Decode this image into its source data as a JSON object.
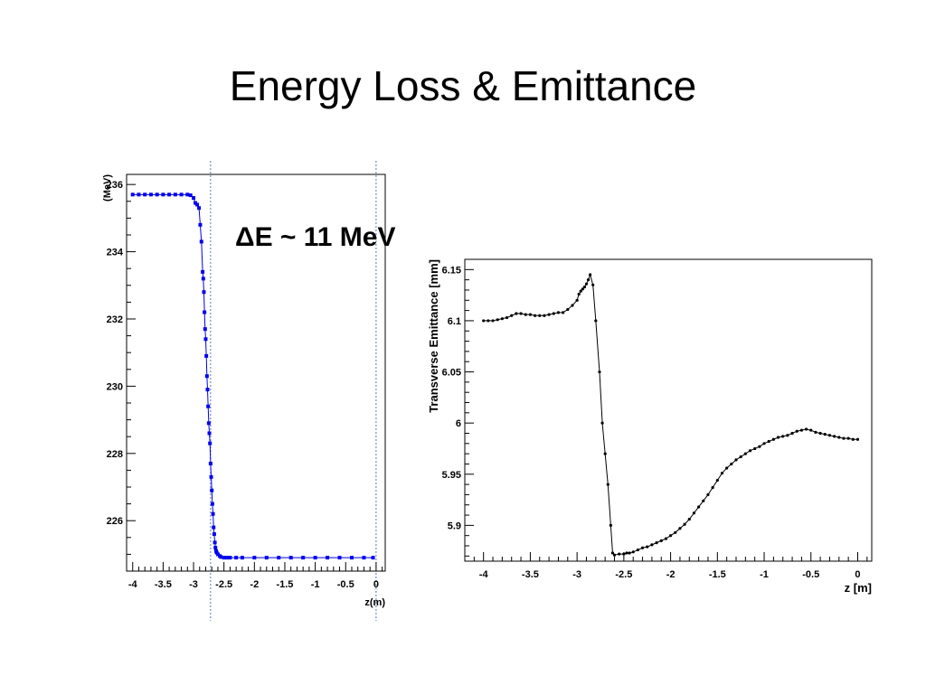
{
  "slide": {
    "title": "Energy Loss & Emittance",
    "annotation": "ΔE ~ 11 MeV"
  },
  "chart_data": [
    {
      "type": "line",
      "title": "",
      "xlabel": "z(m)",
      "ylabel": "(MeV)",
      "xlim": [
        -4.1,
        0.15
      ],
      "ylim": [
        224.5,
        236.3
      ],
      "x_ticks": [
        "-4",
        "-3.5",
        "-3",
        "-2.5",
        "-2",
        "-1.5",
        "-1",
        "-0.5",
        "0"
      ],
      "y_ticks": [
        "226",
        "228",
        "230",
        "232",
        "234",
        "236"
      ],
      "grid": false,
      "colors": {
        "line": "#0000ee",
        "marker": "#0000ee",
        "guide": "#5577cc"
      },
      "vertical_guides": [
        -2.72,
        0.0
      ],
      "series": [
        {
          "x": [
            -4.0,
            -3.9,
            -3.8,
            -3.7,
            -3.6,
            -3.5,
            -3.4,
            -3.3,
            -3.2,
            -3.1,
            -3.05,
            -3.0,
            -2.97,
            -2.94,
            -2.91,
            -2.89,
            -2.87,
            -2.85,
            -2.84,
            -2.83,
            -2.82,
            -2.81,
            -2.8,
            -2.79,
            -2.78,
            -2.77,
            -2.76,
            -2.75,
            -2.74,
            -2.73,
            -2.72,
            -2.71,
            -2.7,
            -2.69,
            -2.68,
            -2.67,
            -2.66,
            -2.65,
            -2.64,
            -2.63,
            -2.62,
            -2.6,
            -2.57,
            -2.55,
            -2.5,
            -2.45,
            -2.4,
            -2.3,
            -2.2,
            -2.0,
            -1.8,
            -1.6,
            -1.4,
            -1.2,
            -1.0,
            -0.8,
            -0.6,
            -0.4,
            -0.2,
            -0.05
          ],
          "y": [
            235.7,
            235.7,
            235.7,
            235.7,
            235.7,
            235.7,
            235.7,
            235.7,
            235.7,
            235.7,
            235.68,
            235.6,
            235.45,
            235.4,
            235.3,
            234.8,
            234.3,
            233.4,
            233.2,
            232.8,
            232.2,
            231.7,
            231.4,
            230.9,
            230.3,
            229.9,
            229.4,
            228.9,
            228.6,
            228.3,
            227.7,
            227.3,
            226.9,
            226.5,
            226.2,
            225.8,
            225.6,
            225.35,
            225.2,
            225.1,
            225.05,
            225.0,
            224.95,
            224.92,
            224.9,
            224.9,
            224.9,
            224.9,
            224.9,
            224.9,
            224.9,
            224.9,
            224.9,
            224.9,
            224.9,
            224.9,
            224.9,
            224.9,
            224.9,
            224.9
          ]
        }
      ]
    },
    {
      "type": "line",
      "title": "",
      "xlabel": "z [m]",
      "ylabel": "Transverse Emittance [mm]",
      "xlim": [
        -4.2,
        0.15
      ],
      "ylim": [
        5.865,
        6.16
      ],
      "x_ticks": [
        "-4",
        "-3.5",
        "-3",
        "-2.5",
        "-2",
        "-1.5",
        "-1",
        "-0.5",
        "0"
      ],
      "y_ticks": [
        "5.9",
        "5.95",
        "6",
        "6.05",
        "6.1",
        "6.15"
      ],
      "grid": false,
      "colors": {
        "line": "#000000",
        "marker": "#000000"
      },
      "series": [
        {
          "x": [
            -4.0,
            -3.95,
            -3.9,
            -3.85,
            -3.8,
            -3.75,
            -3.7,
            -3.65,
            -3.6,
            -3.55,
            -3.5,
            -3.45,
            -3.4,
            -3.35,
            -3.3,
            -3.25,
            -3.2,
            -3.15,
            -3.1,
            -3.05,
            -3.0,
            -2.98,
            -2.96,
            -2.94,
            -2.92,
            -2.9,
            -2.88,
            -2.86,
            -2.83,
            -2.8,
            -2.76,
            -2.73,
            -2.7,
            -2.67,
            -2.64,
            -2.62,
            -2.6,
            -2.55,
            -2.5,
            -2.47,
            -2.44,
            -2.4,
            -2.35,
            -2.3,
            -2.25,
            -2.2,
            -2.15,
            -2.1,
            -2.05,
            -2.0,
            -1.95,
            -1.9,
            -1.85,
            -1.8,
            -1.75,
            -1.7,
            -1.65,
            -1.6,
            -1.55,
            -1.5,
            -1.45,
            -1.4,
            -1.35,
            -1.3,
            -1.25,
            -1.2,
            -1.15,
            -1.1,
            -1.05,
            -1.0,
            -0.95,
            -0.9,
            -0.85,
            -0.8,
            -0.75,
            -0.7,
            -0.65,
            -0.6,
            -0.55,
            -0.5,
            -0.45,
            -0.4,
            -0.35,
            -0.3,
            -0.25,
            -0.2,
            -0.15,
            -0.1,
            -0.05,
            0.0
          ],
          "y": [
            6.1,
            6.1,
            6.1,
            6.101,
            6.102,
            6.103,
            6.105,
            6.107,
            6.107,
            6.106,
            6.106,
            6.105,
            6.105,
            6.105,
            6.106,
            6.107,
            6.108,
            6.108,
            6.111,
            6.115,
            6.12,
            6.126,
            6.129,
            6.131,
            6.133,
            6.136,
            6.14,
            6.145,
            6.135,
            6.1,
            6.05,
            6.0,
            5.97,
            5.94,
            5.9,
            5.873,
            5.871,
            5.872,
            5.872,
            5.873,
            5.873,
            5.874,
            5.876,
            5.878,
            5.879,
            5.881,
            5.883,
            5.885,
            5.887,
            5.89,
            5.893,
            5.897,
            5.901,
            5.906,
            5.912,
            5.918,
            5.924,
            5.93,
            5.937,
            5.944,
            5.951,
            5.956,
            5.96,
            5.964,
            5.967,
            5.97,
            5.973,
            5.975,
            5.977,
            5.98,
            5.982,
            5.984,
            5.986,
            5.987,
            5.988,
            5.99,
            5.992,
            5.993,
            5.994,
            5.993,
            5.991,
            5.99,
            5.989,
            5.988,
            5.987,
            5.986,
            5.985,
            5.985,
            5.984,
            5.984
          ]
        }
      ]
    }
  ]
}
